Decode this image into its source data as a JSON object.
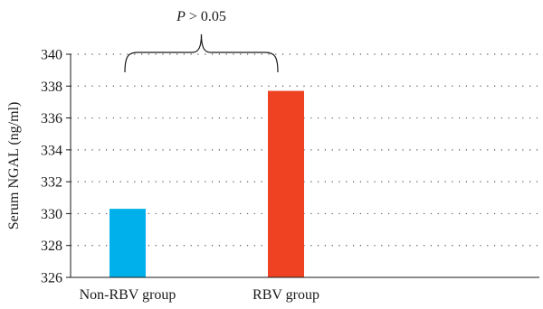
{
  "chart_data": {
    "type": "bar",
    "categories": [
      "Non-RBV group",
      "RBV group"
    ],
    "values": [
      330.3,
      337.7
    ],
    "colors": [
      "#00b0ea",
      "#ef4223"
    ],
    "title": "",
    "xlabel": "",
    "ylabel": "Serum NGAL (ng/ml)",
    "ylim": [
      326,
      340
    ],
    "yticks": [
      326,
      328,
      330,
      332,
      334,
      336,
      338,
      340
    ],
    "grid": true,
    "grid_style": "dotted",
    "legend": "none",
    "annotation": {
      "p_symbol": "P",
      "p_rest": " > 0.05",
      "spans": [
        "Non-RBV group",
        "RBV group"
      ]
    }
  }
}
